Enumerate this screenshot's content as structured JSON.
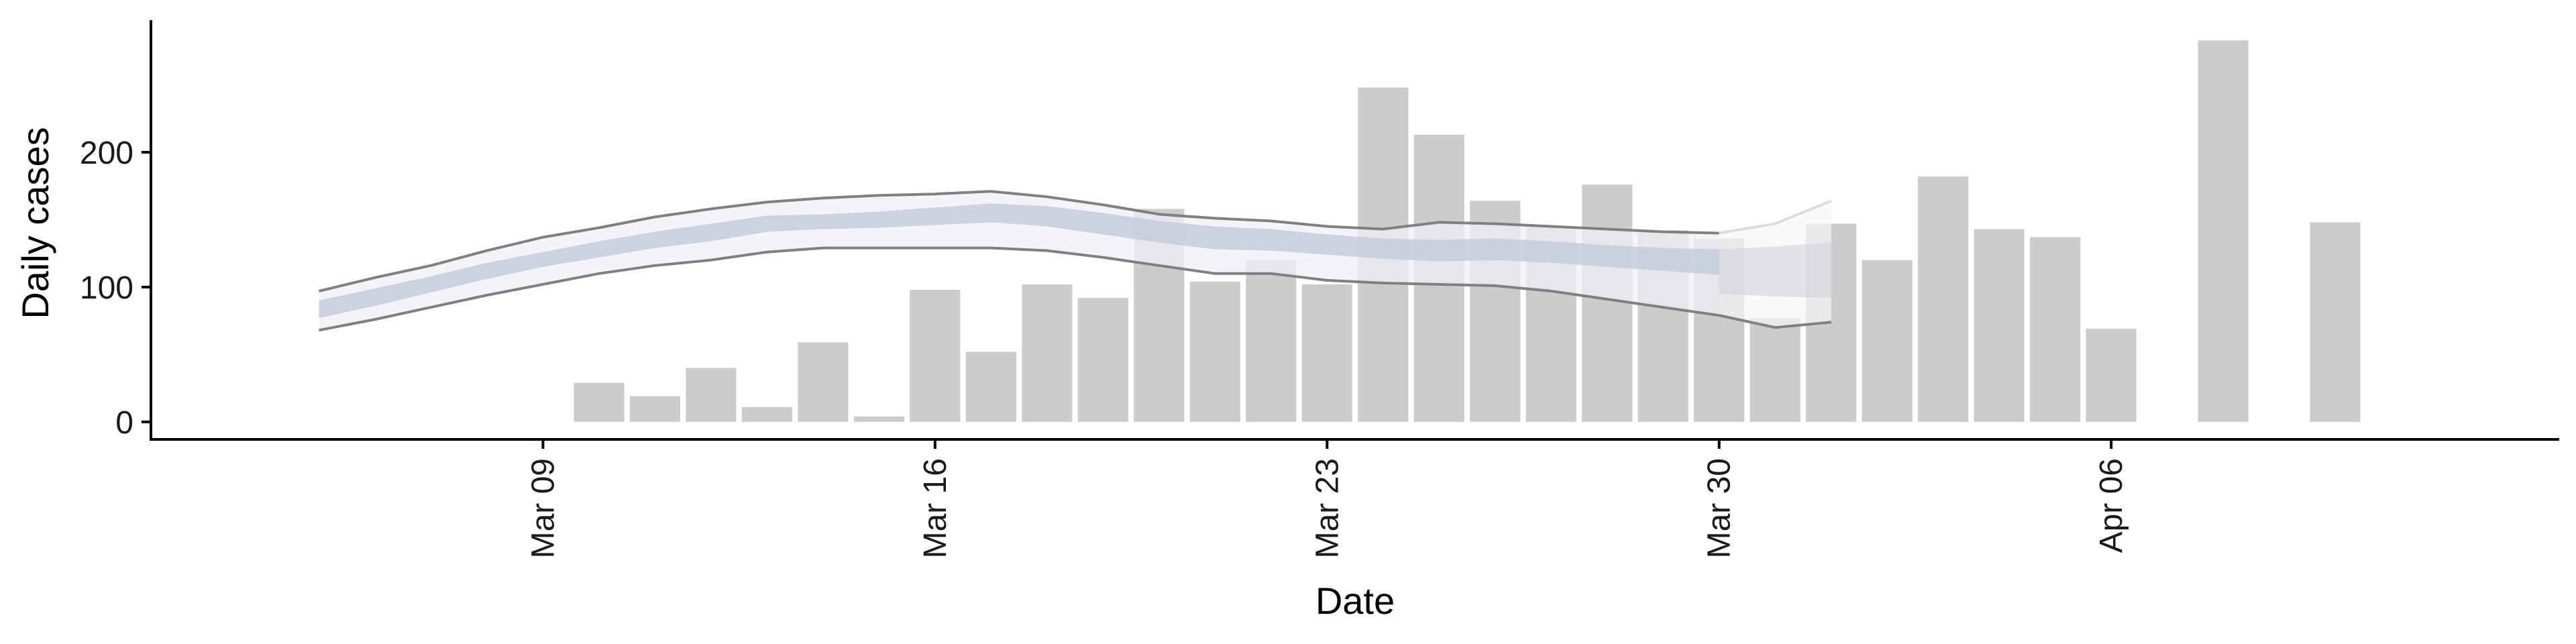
{
  "chart_data": {
    "type": "bar",
    "xlabel": "Date",
    "ylabel": "Daily cases",
    "ylim": [
      -13,
      298
    ],
    "xlim": [
      "2020-03-02",
      "2020-04-14"
    ],
    "grid": false,
    "y_ticks": [
      {
        "value": 0,
        "label": "0"
      },
      {
        "value": 100,
        "label": "100"
      },
      {
        "value": 200,
        "label": "200"
      }
    ],
    "x_ticks": [
      {
        "value": "2020-03-09",
        "label": "Mar 09"
      },
      {
        "value": "2020-03-16",
        "label": "Mar 16"
      },
      {
        "value": "2020-03-23",
        "label": "Mar 23"
      },
      {
        "value": "2020-03-30",
        "label": "Mar 30"
      },
      {
        "value": "2020-04-06",
        "label": "Apr 06"
      }
    ],
    "colors": {
      "bars": "#cccccc",
      "ci_outer_fill": "#eef0f6",
      "ci_outer_line": "#808080",
      "ci_inner_fill": "#c5cbde",
      "forecast_outer_fill": "#f6f6f8",
      "forecast_outer_line": "#dcdcdc",
      "forecast_inner_fill": "#d0d2dc",
      "axis": "#000000"
    },
    "bars": [
      {
        "x": "2020-03-10",
        "y": 29
      },
      {
        "x": "2020-03-11",
        "y": 19
      },
      {
        "x": "2020-03-12",
        "y": 40
      },
      {
        "x": "2020-03-13",
        "y": 11
      },
      {
        "x": "2020-03-14",
        "y": 59
      },
      {
        "x": "2020-03-15",
        "y": 4
      },
      {
        "x": "2020-03-16",
        "y": 98
      },
      {
        "x": "2020-03-17",
        "y": 52
      },
      {
        "x": "2020-03-18",
        "y": 102
      },
      {
        "x": "2020-03-19",
        "y": 92
      },
      {
        "x": "2020-03-20",
        "y": 158
      },
      {
        "x": "2020-03-21",
        "y": 104
      },
      {
        "x": "2020-03-22",
        "y": 120
      },
      {
        "x": "2020-03-23",
        "y": 102
      },
      {
        "x": "2020-03-24",
        "y": 248
      },
      {
        "x": "2020-03-25",
        "y": 213
      },
      {
        "x": "2020-03-26",
        "y": 164
      },
      {
        "x": "2020-03-27",
        "y": 145
      },
      {
        "x": "2020-03-28",
        "y": 176
      },
      {
        "x": "2020-03-29",
        "y": 142
      },
      {
        "x": "2020-03-30",
        "y": 136
      },
      {
        "x": "2020-03-31",
        "y": 77
      },
      {
        "x": "2020-04-01",
        "y": 147
      },
      {
        "x": "2020-04-02",
        "y": 120
      },
      {
        "x": "2020-04-03",
        "y": 182
      },
      {
        "x": "2020-04-04",
        "y": 143
      },
      {
        "x": "2020-04-05",
        "y": 137
      },
      {
        "x": "2020-04-06",
        "y": 69
      },
      {
        "x": "2020-04-08",
        "y": 283
      },
      {
        "x": "2020-04-10",
        "y": 148
      }
    ],
    "estimate": {
      "x": [
        "2020-03-05",
        "2020-03-06",
        "2020-03-07",
        "2020-03-08",
        "2020-03-09",
        "2020-03-10",
        "2020-03-11",
        "2020-03-12",
        "2020-03-13",
        "2020-03-14",
        "2020-03-15",
        "2020-03-16",
        "2020-03-17",
        "2020-03-18",
        "2020-03-19",
        "2020-03-20",
        "2020-03-21",
        "2020-03-22",
        "2020-03-23",
        "2020-03-24",
        "2020-03-25",
        "2020-03-26",
        "2020-03-27",
        "2020-03-28",
        "2020-03-29",
        "2020-03-30"
      ],
      "lower90": [
        68,
        76,
        85,
        94,
        102,
        110,
        116,
        120,
        126,
        129,
        129,
        129,
        129,
        127,
        122,
        116,
        110,
        110,
        105,
        103,
        102,
        101,
        97,
        91,
        85,
        79
      ],
      "upper90": [
        97,
        107,
        116,
        127,
        137,
        144,
        152,
        158,
        163,
        166,
        168,
        169,
        171,
        167,
        161,
        154,
        151,
        149,
        145,
        143,
        148,
        147,
        145,
        143,
        141,
        140
      ],
      "lower50": [
        77,
        86,
        96,
        106,
        115,
        122,
        129,
        134,
        141,
        143,
        144,
        146,
        148,
        145,
        139,
        133,
        128,
        127,
        124,
        121,
        119,
        120,
        118,
        115,
        112,
        109
      ],
      "upper50": [
        90,
        99,
        108,
        118,
        126,
        134,
        141,
        147,
        153,
        154,
        156,
        159,
        162,
        160,
        155,
        149,
        145,
        143,
        139,
        136,
        135,
        136,
        134,
        131,
        129,
        128
      ]
    },
    "forecast": {
      "x": [
        "2020-03-30",
        "2020-03-31",
        "2020-04-01"
      ],
      "lower90": [
        79,
        70,
        74
      ],
      "upper90": [
        140,
        147,
        164
      ],
      "lower50": [
        95,
        93,
        92
      ],
      "upper50": [
        128,
        130,
        133
      ]
    }
  }
}
